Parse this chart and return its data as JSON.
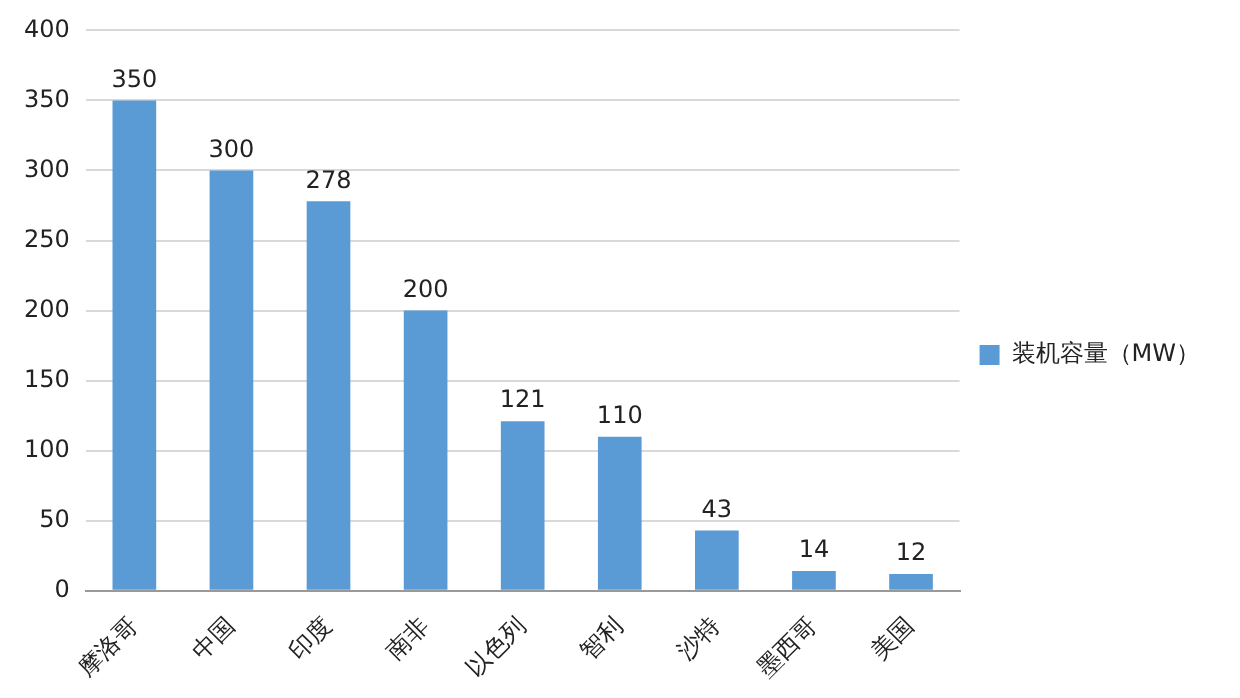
{
  "chart_data": {
    "type": "bar",
    "categories": [
      "摩洛哥",
      "中国",
      "印度",
      "南非",
      "以色列",
      "智利",
      "沙特",
      "墨西哥",
      "美国"
    ],
    "series": [
      {
        "name": "装机容量（MW）",
        "color": "#5b9bd5",
        "values": [
          350,
          300,
          278,
          200,
          121,
          110,
          43,
          14,
          12
        ]
      }
    ],
    "ylim": [
      0,
      400
    ],
    "yticks": [
      0,
      50,
      100,
      150,
      200,
      250,
      300,
      350,
      400
    ],
    "grid": "y",
    "legend": "right",
    "data_labels": true
  }
}
